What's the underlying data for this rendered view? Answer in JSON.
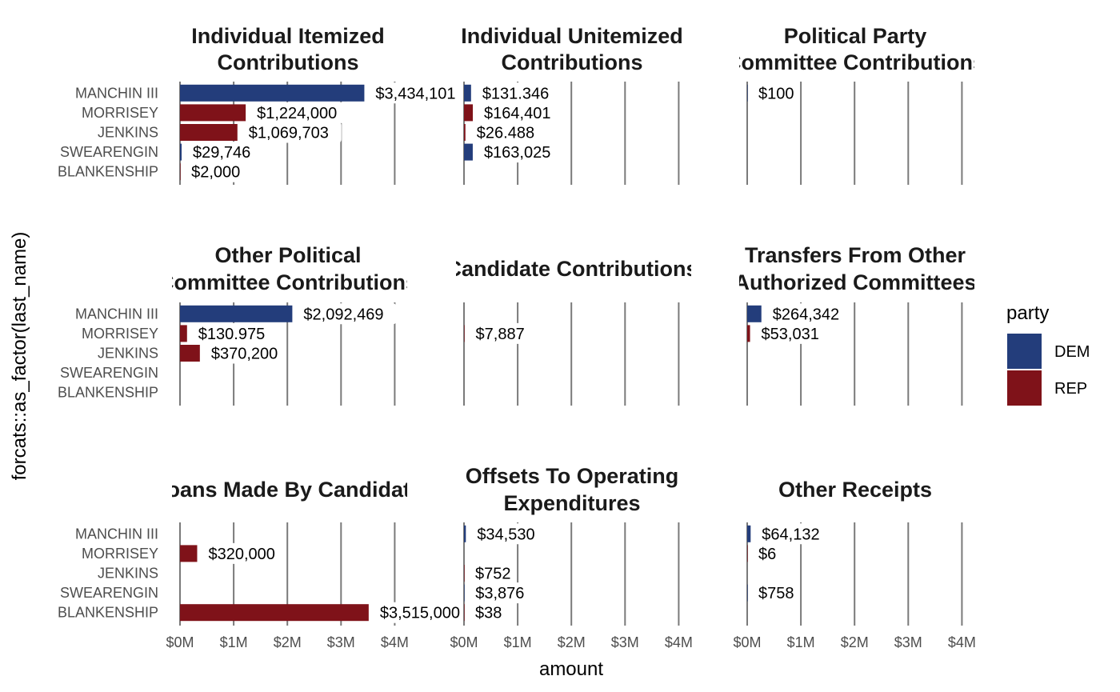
{
  "chart_data": {
    "type": "bar",
    "orientation": "horizontal",
    "faceted": true,
    "xlabel": "amount",
    "ylabel": "forcats::as_factor(last_name)",
    "xlim": [
      0,
      4000000
    ],
    "x_ticks": [
      "$0M",
      "$1M",
      "$2M",
      "$3M",
      "$4M"
    ],
    "categories": [
      "MANCHIN III",
      "MORRISEY",
      "JENKINS",
      "SWEARENGIN",
      "BLANKENSHIP"
    ],
    "party_by_candidate": [
      "DEM",
      "REP",
      "REP",
      "DEM",
      "REP"
    ],
    "legend": {
      "title": "party",
      "placement": "right",
      "entries": [
        {
          "name": "DEM",
          "color": "#233d7b"
        },
        {
          "name": "REP",
          "color": "#7f1219"
        }
      ]
    },
    "grid": "vertical lines at x ticks",
    "panels": [
      {
        "title": [
          "Individual Itemized",
          "Contributions"
        ],
        "values": [
          3434101,
          1224000,
          1069703,
          29746,
          2000
        ],
        "labels": [
          "$3,434,101",
          "$1,224,000",
          "$1,069,703",
          "$29,746",
          "$2,000"
        ]
      },
      {
        "title": [
          "Individual Unitemized",
          "Contributions"
        ],
        "values": [
          131346,
          164401,
          26488,
          163025,
          null
        ],
        "labels": [
          "$131.346",
          "$164,401",
          "$26.488",
          "$163,025",
          null
        ]
      },
      {
        "title": [
          "Political Party",
          "Committee Contributions"
        ],
        "values": [
          100,
          null,
          null,
          null,
          null
        ],
        "labels": [
          "$100",
          null,
          null,
          null,
          null
        ]
      },
      {
        "title": [
          "Other Political",
          "Committee Contributions"
        ],
        "values": [
          2092469,
          130975,
          370200,
          null,
          null
        ],
        "labels": [
          "$2,092,469",
          "$130.975",
          "$370,200",
          null,
          null
        ]
      },
      {
        "title": [
          "Candidate Contributions"
        ],
        "values": [
          null,
          7887,
          null,
          null,
          null
        ],
        "labels": [
          null,
          "$7,887",
          null,
          null,
          null
        ]
      },
      {
        "title": [
          "Transfers From Other",
          "Authorized Committees"
        ],
        "values": [
          264342,
          53031,
          null,
          null,
          null
        ],
        "labels": [
          "$264,342",
          "$53,031",
          null,
          null,
          null
        ]
      },
      {
        "title": [
          "Loans Made By Candidate"
        ],
        "values": [
          null,
          320000,
          null,
          null,
          3515000
        ],
        "labels": [
          null,
          "$320,000",
          null,
          null,
          "$3,515,000"
        ]
      },
      {
        "title": [
          "Offsets To Operating",
          "Expenditures"
        ],
        "values": [
          34530,
          null,
          752,
          3876,
          38
        ],
        "labels": [
          "$34,530",
          null,
          "$752",
          "$3,876",
          "$38"
        ]
      },
      {
        "title": [
          "Other Receipts"
        ],
        "values": [
          64132,
          6,
          null,
          758,
          null
        ],
        "labels": [
          "$64,132",
          "$6",
          null,
          "$758",
          null
        ]
      }
    ]
  }
}
